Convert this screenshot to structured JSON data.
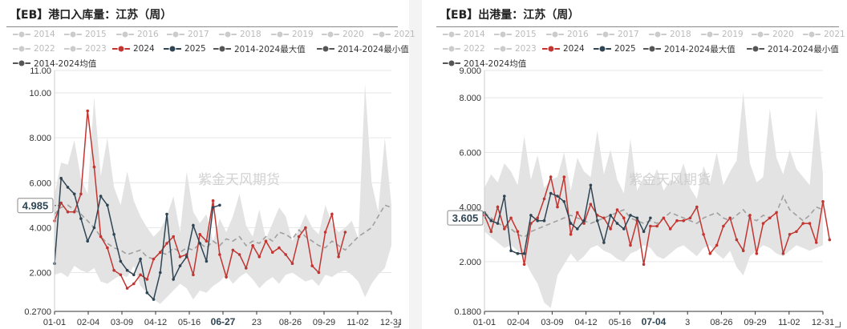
{
  "watermark": "紫金天风期货",
  "series_styles": {
    "2014": {
      "color": "#cccccc",
      "active": false
    },
    "2015": {
      "color": "#cccccc",
      "active": false
    },
    "2016": {
      "color": "#cccccc",
      "active": false
    },
    "2017": {
      "color": "#cccccc",
      "active": false
    },
    "2018": {
      "color": "#cccccc",
      "active": false
    },
    "2019": {
      "color": "#cccccc",
      "active": false
    },
    "2020": {
      "color": "#cccccc",
      "active": false
    },
    "2021": {
      "color": "#cccccc",
      "active": false
    },
    "2022": {
      "color": "#cccccc",
      "active": false
    },
    "2023": {
      "color": "#cccccc",
      "active": false
    },
    "2024": {
      "color": "#c23531",
      "active": true
    },
    "2025": {
      "color": "#2f4554",
      "active": true
    },
    "2014-2024最大值": {
      "color": "#555555",
      "active": true
    },
    "2014-2024最小值": {
      "color": "#555555",
      "active": true
    },
    "2014-2024均值": {
      "color": "#555555",
      "active": true
    }
  },
  "chart_data": [
    {
      "type": "line",
      "title": "【EB】港口入库量：江苏（周）",
      "legend": [
        "2014",
        "2015",
        "2016",
        "2017",
        "2018",
        "2019",
        "2020",
        "2021",
        "2022",
        "2023",
        "2024",
        "2025",
        "2014-2024最大值",
        "2014-2024最小值",
        "2014-2024均值"
      ],
      "y_ticks": [
        "0.2700",
        "2.000",
        "4.000",
        "6.000",
        "8.000",
        "10.00",
        "11.00"
      ],
      "ylim": [
        0.27,
        11.0
      ],
      "x_ticks": [
        "01-01",
        "02-04",
        "03-09",
        "04-12",
        "05-16",
        "06-27",
        "23",
        "08-26",
        "09-29",
        "11-02",
        "12-31"
      ],
      "x_highlight": "06-27",
      "pointer_value": "4.985",
      "pointer_y": 4.985,
      "weeks": 52,
      "band_max": [
        5.5,
        6.9,
        6.8,
        7.9,
        6.2,
        5.5,
        9.8,
        6.3,
        8.0,
        5.8,
        5.0,
        6.5,
        5.2,
        4.5,
        4.0,
        3.6,
        3.9,
        4.5,
        5.4,
        3.8,
        6.5,
        4.7,
        4.2,
        4.6,
        3.4,
        4.4,
        3.8,
        4.5,
        5.5,
        4.1,
        3.6,
        4.8,
        3.5,
        4.2,
        4.9,
        4.5,
        3.4,
        3.9,
        4.6,
        4.0,
        3.7,
        5.0,
        4.2,
        3.8,
        4.0,
        4.3,
        3.5,
        10.4,
        6.0,
        4.7,
        8.0,
        5.0
      ],
      "band_min": [
        1.9,
        2.0,
        1.8,
        2.3,
        2.1,
        2.0,
        2.2,
        1.6,
        1.5,
        1.7,
        1.9,
        1.8,
        2.3,
        1.4,
        1.1,
        0.8,
        0.6,
        0.9,
        1.2,
        1.5,
        1.3,
        0.8,
        1.2,
        1.1,
        1.4,
        1.6,
        1.9,
        1.5,
        1.8,
        2.0,
        1.7,
        1.3,
        1.6,
        1.8,
        1.5,
        1.9,
        2.0,
        1.8,
        1.6,
        1.7,
        1.4,
        1.9,
        1.8,
        2.0,
        2.1,
        1.9,
        1.6,
        0.9,
        1.5,
        1.9,
        2.2,
        3.2
      ],
      "mean": [
        4.6,
        4.9,
        5.0,
        4.8,
        4.6,
        4.3,
        4.0,
        3.6,
        3.3,
        3.1,
        3.0,
        2.8,
        2.9,
        3.0,
        2.7,
        2.6,
        2.9,
        2.8,
        3.1,
        2.9,
        3.1,
        3.0,
        3.3,
        3.1,
        3.4,
        3.2,
        3.5,
        3.4,
        3.6,
        3.2,
        3.4,
        3.3,
        3.6,
        3.4,
        3.8,
        3.7,
        3.5,
        3.9,
        3.6,
        3.4,
        3.2,
        3.1,
        3.4,
        3.2,
        3.0,
        3.3,
        3.6,
        3.8,
        4.0,
        4.5,
        5.0,
        4.9
      ],
      "s2024": [
        4.3,
        5.1,
        4.7,
        4.7,
        5.5,
        9.2,
        6.7,
        3.6,
        3.1,
        2.1,
        1.9,
        1.3,
        1.5,
        1.9,
        1.7,
        2.6,
        2.9,
        3.3,
        3.6,
        2.7,
        2.8,
        1.9,
        3.7,
        3.4,
        5.2,
        2.8,
        1.8,
        3.0,
        2.8,
        2.2,
        3.2,
        2.7,
        3.4,
        2.9,
        3.1,
        2.8,
        2.4,
        3.6,
        4.0,
        2.3,
        2.0,
        3.8,
        4.6,
        2.7,
        3.8
      ],
      "s2025": [
        2.4,
        6.2,
        5.8,
        5.5,
        4.4,
        3.4,
        4.0,
        5.4,
        5.0,
        3.7,
        2.5,
        2.1,
        1.9,
        2.6,
        1.1,
        0.8,
        2.0,
        4.6,
        1.7,
        2.3,
        2.7,
        4.1,
        3.3,
        2.5,
        4.9,
        5.0
      ],
      "s2025_start": 0
    },
    {
      "type": "line",
      "title": "【EB】出港量：江苏（周）",
      "legend": [
        "2014",
        "2015",
        "2016",
        "2017",
        "2018",
        "2019",
        "2020",
        "2021",
        "2022",
        "2023",
        "2024",
        "2025",
        "2014-2024最大值",
        "2014-2024最小值",
        "2014-2024均值"
      ],
      "y_ticks": [
        "0.1800",
        "2.000",
        "4.000",
        "6.000",
        "8.000",
        "9.000"
      ],
      "ylim": [
        0.18,
        9.0
      ],
      "x_ticks": [
        "01-01",
        "02-04",
        "03-09",
        "04-12",
        "05-16",
        "07-04",
        "3",
        "08-26",
        "09-29",
        "11-02",
        "12-31"
      ],
      "x_highlight": "07-04",
      "pointer_value": "3.605",
      "pointer_y": 3.605,
      "weeks": 52,
      "band_max": [
        4.7,
        5.2,
        4.9,
        5.6,
        5.3,
        4.8,
        6.6,
        5.0,
        5.9,
        4.7,
        5.0,
        5.1,
        6.0,
        4.6,
        5.8,
        5.3,
        5.1,
        6.8,
        5.2,
        6.1,
        5.0,
        4.5,
        6.5,
        4.6,
        5.1,
        4.8,
        5.4,
        4.6,
        5.0,
        4.9,
        5.6,
        4.7,
        4.3,
        5.5,
        4.9,
        6.0,
        4.8,
        5.3,
        5.7,
        8.2,
        5.6,
        4.9,
        5.1,
        7.6,
        5.8,
        5.2,
        6.1,
        5.4,
        5.1,
        4.8,
        7.6,
        5.2
      ],
      "band_min": [
        3.1,
        2.9,
        2.7,
        2.5,
        2.6,
        2.4,
        2.1,
        1.6,
        1.2,
        0.5,
        0.3,
        1.5,
        1.9,
        2.3,
        2.0,
        2.2,
        2.5,
        2.6,
        2.4,
        2.3,
        2.1,
        2.0,
        2.3,
        2.4,
        2.6,
        2.5,
        2.2,
        2.1,
        2.3,
        2.5,
        2.6,
        2.4,
        2.2,
        2.5,
        2.6,
        2.3,
        2.1,
        2.4,
        1.8,
        1.5,
        2.2,
        2.4,
        2.6,
        2.5,
        2.3,
        2.2,
        2.4,
        2.6,
        2.5,
        2.4,
        2.5,
        2.6
      ],
      "mean": [
        3.8,
        3.6,
        3.4,
        3.3,
        3.2,
        3.0,
        2.9,
        3.1,
        3.2,
        3.3,
        3.4,
        3.5,
        3.6,
        3.7,
        3.6,
        3.5,
        3.4,
        3.5,
        3.6,
        3.7,
        3.8,
        3.9,
        3.6,
        3.5,
        3.4,
        3.5,
        3.4,
        3.6,
        3.8,
        3.7,
        3.6,
        3.5,
        3.4,
        3.6,
        3.7,
        3.8,
        3.6,
        3.5,
        3.7,
        3.9,
        3.6,
        3.5,
        3.7,
        3.6,
        3.8,
        4.4,
        3.9,
        3.7,
        3.5,
        3.7,
        4.0,
        3.9
      ],
      "s2024": [
        3.7,
        3.1,
        4.0,
        3.2,
        3.6,
        3.1,
        1.9,
        3.4,
        3.6,
        4.3,
        5.1,
        4.0,
        5.1,
        3.0,
        3.8,
        3.4,
        4.1,
        3.7,
        3.6,
        3.2,
        3.9,
        3.6,
        2.6,
        3.5,
        1.9,
        3.3,
        3.3,
        3.6,
        3.2,
        3.5,
        3.5,
        3.6,
        4.0,
        3.0,
        2.3,
        2.6,
        3.3,
        3.6,
        2.8,
        2.4,
        3.7,
        2.3,
        3.4,
        3.6,
        3.8,
        2.3,
        3.0,
        3.1,
        3.4,
        3.4,
        2.7,
        4.2,
        2.8
      ],
      "s2025": [
        3.8,
        3.5,
        3.4,
        4.4,
        2.4,
        2.3,
        2.3,
        3.7,
        3.5,
        3.5,
        4.5,
        4.4,
        4.2,
        3.4,
        3.2,
        3.5,
        4.8,
        3.5,
        2.7,
        3.7,
        3.4,
        3.2,
        3.7,
        3.6,
        3.1,
        3.6
      ],
      "s2025_start": 0
    }
  ]
}
